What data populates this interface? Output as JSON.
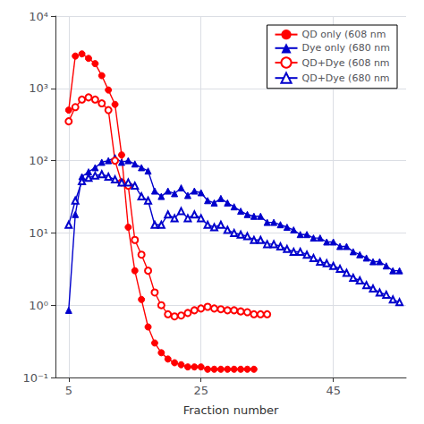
{
  "chart_data": {
    "type": "line",
    "xlabel": "Fraction number",
    "xlim": [
      3,
      56
    ],
    "xticks": [
      5,
      25,
      45
    ],
    "ylim": [
      0.1,
      10000
    ],
    "yticks": [
      {
        "value": 0.1,
        "label": "10⁻¹"
      },
      {
        "value": 1,
        "label": "10⁰"
      },
      {
        "value": 10,
        "label": "10¹"
      },
      {
        "value": 100,
        "label": "10²"
      },
      {
        "value": 1000,
        "label": "10³"
      },
      {
        "value": 10000,
        "label": "10⁴"
      }
    ],
    "log": "y",
    "grid": true,
    "legend": "upper right",
    "series": [
      {
        "name": "QD only (608 nm",
        "color": "#ff0000",
        "marker": "circle",
        "x": [
          5,
          6,
          7,
          8,
          9,
          10,
          11,
          12,
          13,
          14,
          15,
          16,
          17,
          18,
          19,
          20,
          21,
          22,
          23,
          24,
          25,
          26,
          27,
          28,
          29,
          30,
          31,
          32,
          33
        ],
        "values": [
          500,
          2800,
          3000,
          2600,
          2200,
          1500,
          950,
          600,
          120,
          12,
          3.0,
          1.2,
          0.5,
          0.3,
          0.22,
          0.18,
          0.16,
          0.15,
          0.14,
          0.14,
          0.14,
          0.13,
          0.13,
          0.13,
          0.13,
          0.13,
          0.13,
          0.13,
          0.13
        ]
      },
      {
        "name": "Dye only (680 nm",
        "color": "#0000cc",
        "marker": "triangle",
        "x": [
          5,
          6,
          7,
          8,
          9,
          10,
          11,
          12,
          13,
          14,
          15,
          16,
          17,
          18,
          19,
          20,
          21,
          22,
          23,
          24,
          25,
          26,
          27,
          28,
          29,
          30,
          31,
          32,
          33,
          34,
          35,
          36,
          37,
          38,
          39,
          40,
          41,
          42,
          43,
          44,
          45,
          46,
          47,
          48,
          49,
          50,
          51,
          52,
          53,
          54,
          55
        ],
        "values": [
          0.85,
          18,
          60,
          70,
          80,
          95,
          100,
          110,
          95,
          100,
          90,
          80,
          72,
          38,
          32,
          38,
          35,
          42,
          33,
          38,
          36,
          28,
          26,
          30,
          26,
          23,
          20,
          18,
          17,
          17,
          14,
          14,
          13,
          12,
          11,
          9.5,
          9.5,
          8.5,
          8.5,
          7.5,
          7.5,
          6.5,
          6.5,
          5.5,
          5,
          4.5,
          4,
          4,
          3.5,
          3,
          3
        ]
      },
      {
        "name": "QD+Dye (608 nm",
        "color": "#ff0000",
        "marker": "open_circle",
        "x": [
          5,
          6,
          7,
          8,
          9,
          10,
          11,
          12,
          13,
          14,
          15,
          16,
          17,
          18,
          19,
          20,
          21,
          22,
          23,
          24,
          25,
          26,
          27,
          28,
          29,
          30,
          31,
          32,
          33,
          34,
          35
        ],
        "values": [
          350,
          550,
          700,
          750,
          700,
          620,
          500,
          100,
          50,
          45,
          8,
          5,
          3,
          1.5,
          1.0,
          0.75,
          0.7,
          0.72,
          0.78,
          0.85,
          0.9,
          0.95,
          0.9,
          0.88,
          0.85,
          0.85,
          0.82,
          0.8,
          0.75,
          0.75,
          0.75
        ]
      },
      {
        "name": "QD+Dye (680 nm",
        "color": "#0000cc",
        "marker": "open_triangle",
        "x": [
          5,
          6,
          7,
          8,
          9,
          10,
          11,
          12,
          13,
          14,
          15,
          16,
          17,
          18,
          19,
          20,
          21,
          22,
          23,
          24,
          25,
          26,
          27,
          28,
          29,
          30,
          31,
          32,
          33,
          34,
          35,
          36,
          37,
          38,
          39,
          40,
          41,
          42,
          43,
          44,
          45,
          46,
          47,
          48,
          49,
          50,
          51,
          52,
          53,
          54,
          55
        ],
        "values": [
          13,
          28,
          52,
          58,
          62,
          65,
          60,
          55,
          50,
          50,
          45,
          32,
          28,
          13,
          13,
          18,
          16,
          20,
          16,
          18,
          16,
          13,
          12,
          13,
          11,
          10,
          9.5,
          9,
          8,
          8,
          7,
          7,
          6.5,
          6,
          5.5,
          5.5,
          5,
          4.5,
          4,
          3.8,
          3.5,
          3.2,
          2.8,
          2.4,
          2.2,
          1.9,
          1.7,
          1.5,
          1.4,
          1.2,
          1.1
        ]
      }
    ]
  }
}
